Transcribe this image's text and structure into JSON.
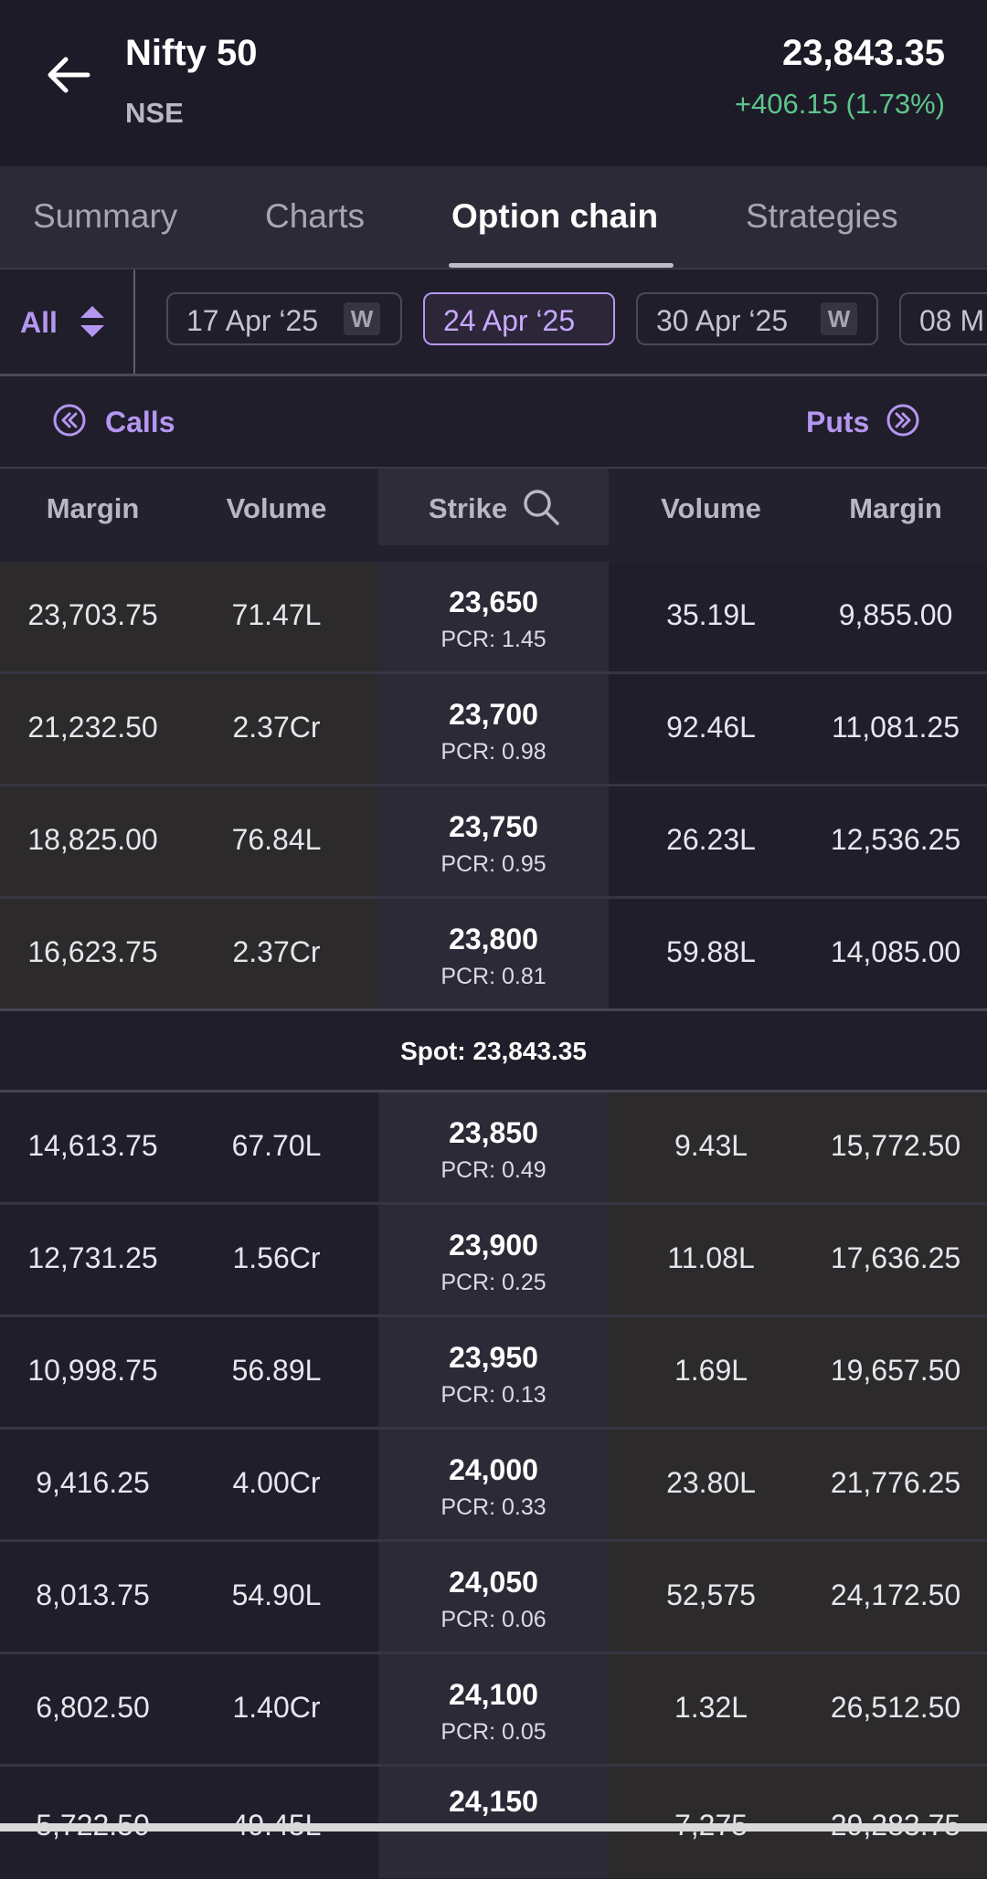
{
  "header": {
    "title": "Nifty 50",
    "exchange": "NSE",
    "price": "23,843.35",
    "change": "+406.15 (1.73%)"
  },
  "tabs": [
    {
      "label": "Summary"
    },
    {
      "label": "Charts"
    },
    {
      "label": "Option chain",
      "active": true
    },
    {
      "label": "Strategies"
    }
  ],
  "filter": {
    "all_label": "All",
    "expiries": [
      {
        "label": "17 Apr ‘25",
        "weekly": "W"
      },
      {
        "label": "24 Apr ‘25",
        "active": true
      },
      {
        "label": "30 Apr ‘25",
        "weekly": "W"
      },
      {
        "label": "08 M"
      }
    ]
  },
  "sides": {
    "calls": "Calls",
    "puts": "Puts"
  },
  "columns": {
    "call_margin": "Margin",
    "call_volume": "Volume",
    "strike": "Strike",
    "put_volume": "Volume",
    "put_margin": "Margin"
  },
  "spot": "Spot: 23,843.35",
  "rows_above": [
    {
      "call_margin": "23,703.75",
      "call_volume": "71.47L",
      "strike": "23,650",
      "pcr": "PCR: 1.45",
      "put_volume": "35.19L",
      "put_margin": "9,855.00"
    },
    {
      "call_margin": "21,232.50",
      "call_volume": "2.37Cr",
      "strike": "23,700",
      "pcr": "PCR: 0.98",
      "put_volume": "92.46L",
      "put_margin": "11,081.25"
    },
    {
      "call_margin": "18,825.00",
      "call_volume": "76.84L",
      "strike": "23,750",
      "pcr": "PCR: 0.95",
      "put_volume": "26.23L",
      "put_margin": "12,536.25"
    },
    {
      "call_margin": "16,623.75",
      "call_volume": "2.37Cr",
      "strike": "23,800",
      "pcr": "PCR: 0.81",
      "put_volume": "59.88L",
      "put_margin": "14,085.00"
    }
  ],
  "rows_below": [
    {
      "call_margin": "14,613.75",
      "call_volume": "67.70L",
      "strike": "23,850",
      "pcr": "PCR: 0.49",
      "put_volume": "9.43L",
      "put_margin": "15,772.50"
    },
    {
      "call_margin": "12,731.25",
      "call_volume": "1.56Cr",
      "strike": "23,900",
      "pcr": "PCR: 0.25",
      "put_volume": "11.08L",
      "put_margin": "17,636.25"
    },
    {
      "call_margin": "10,998.75",
      "call_volume": "56.89L",
      "strike": "23,950",
      "pcr": "PCR: 0.13",
      "put_volume": "1.69L",
      "put_margin": "19,657.50"
    },
    {
      "call_margin": "9,416.25",
      "call_volume": "4.00Cr",
      "strike": "24,000",
      "pcr": "PCR: 0.33",
      "put_volume": "23.80L",
      "put_margin": "21,776.25"
    },
    {
      "call_margin": "8,013.75",
      "call_volume": "54.90L",
      "strike": "24,050",
      "pcr": "PCR: 0.06",
      "put_volume": "52,575",
      "put_margin": "24,172.50"
    },
    {
      "call_margin": "6,802.50",
      "call_volume": "1.40Cr",
      "strike": "24,100",
      "pcr": "PCR: 0.05",
      "put_volume": "1.32L",
      "put_margin": "26,512.50"
    },
    {
      "call_margin": "5,722.50",
      "call_volume": "49.45L",
      "strike": "24,150",
      "pcr": "",
      "put_volume": "7,275",
      "put_margin": "29,283.75"
    }
  ],
  "colors": {
    "accent": "#b596f0",
    "positive": "#5ec48d",
    "itm_bg": "#2c2a2b",
    "background": "#1f1e2a"
  }
}
